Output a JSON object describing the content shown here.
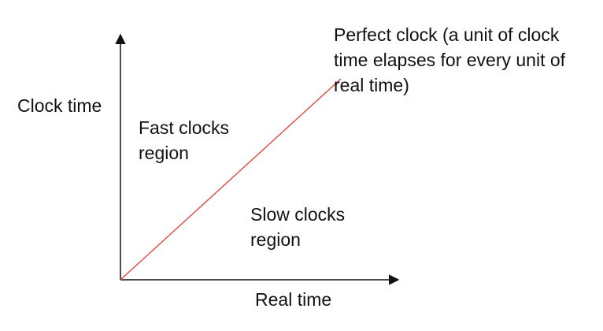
{
  "labels": {
    "y_axis": "Clock time",
    "x_axis": "Real time",
    "fast_region": "Fast clocks\nregion",
    "slow_region": "Slow clocks\nregion",
    "perfect_clock": "Perfect clock (a unit of clock\ntime elapses for every unit of\nreal time)"
  },
  "colors": {
    "axis": "#111111",
    "perfect_line": "#e0473f",
    "text": "#111111"
  }
}
